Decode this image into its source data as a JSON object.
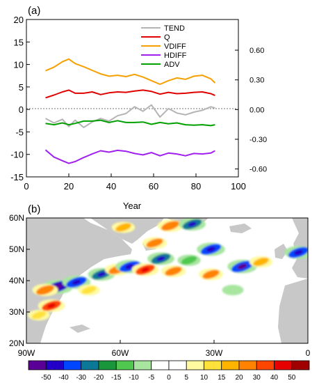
{
  "chart_data": [
    {
      "panel_label": "(a)",
      "type": "line",
      "xlabel": "Year",
      "xlim": [
        0,
        100
      ],
      "ylim": [
        -15,
        20
      ],
      "y2lim": [
        -0.68,
        0.91
      ],
      "x_ticks": [
        0,
        20,
        40,
        60,
        80,
        100
      ],
      "y_ticks": [
        -15,
        -10,
        -5,
        0,
        5,
        10,
        15,
        20
      ],
      "y2_ticks": [
        "-0.60",
        "-0.30",
        "0.00",
        "0.30",
        "0.60"
      ],
      "y2_tick_values": [
        -0.6,
        -0.3,
        0.0,
        0.3,
        0.6
      ],
      "legend_position": "top-center",
      "x": [
        9,
        13,
        17,
        20,
        23,
        27,
        31,
        35,
        39,
        43,
        47,
        51,
        55,
        59,
        63,
        67,
        71,
        75,
        79,
        83,
        87,
        89
      ],
      "series": [
        {
          "name": "TEND",
          "color": "#b4b4b4",
          "values": [
            -2.0,
            -3.0,
            -2.2,
            -3.8,
            -2.4,
            -4.0,
            -2.8,
            -2.0,
            -2.6,
            -1.4,
            -0.9,
            0.6,
            -0.4,
            1.0,
            -1.7,
            0.2,
            -0.8,
            -1.2,
            -0.6,
            -0.2,
            0.6,
            0.3
          ]
        },
        {
          "name": "Q",
          "color": "#e00000",
          "values": [
            2.6,
            3.2,
            3.9,
            4.3,
            3.6,
            3.6,
            3.9,
            3.3,
            3.7,
            3.9,
            3.8,
            4.1,
            4.3,
            4.0,
            3.4,
            3.8,
            3.5,
            3.6,
            3.8,
            3.9,
            3.5,
            3.1
          ]
        },
        {
          "name": "VDIFF",
          "color": "#f5a000",
          "values": [
            8.6,
            9.4,
            10.6,
            11.2,
            10.2,
            9.5,
            8.7,
            7.9,
            7.4,
            7.6,
            7.3,
            7.8,
            7.2,
            6.4,
            5.6,
            6.4,
            7.0,
            6.7,
            7.4,
            7.6,
            6.8,
            5.9
          ]
        },
        {
          "name": "HDIFF",
          "color": "#a020f0",
          "values": [
            -9.0,
            -10.6,
            -11.4,
            -12.0,
            -11.6,
            -10.7,
            -9.9,
            -9.2,
            -9.5,
            -9.1,
            -9.3,
            -9.8,
            -10.1,
            -9.6,
            -10.3,
            -9.7,
            -9.9,
            -10.3,
            -9.8,
            -9.9,
            -9.7,
            -9.2
          ]
        },
        {
          "name": "ADV",
          "color": "#00a000",
          "values": [
            -3.1,
            -3.4,
            -3.0,
            -3.4,
            -3.1,
            -2.6,
            -2.6,
            -2.4,
            -2.9,
            -2.5,
            -2.9,
            -2.9,
            -2.8,
            -3.3,
            -2.9,
            -3.2,
            -3.0,
            -3.4,
            -3.5,
            -3.4,
            -3.6,
            -3.4
          ]
        }
      ]
    },
    {
      "panel_label": "(b)",
      "type": "heatmap",
      "map_extent": {
        "lon": [
          -90,
          0
        ],
        "lat": [
          20,
          60
        ]
      },
      "x_tick_labels": [
        "90W",
        "60W",
        "30W",
        "0"
      ],
      "y_tick_labels": [
        "20N",
        "30N",
        "40N",
        "50N",
        "60N"
      ],
      "colorbar_levels": [
        -50,
        -40,
        -30,
        -20,
        -15,
        -10,
        -5,
        0,
        5,
        10,
        15,
        20,
        30,
        40,
        50
      ],
      "colorbar_colors": [
        "#5a0096",
        "#2300c8",
        "#0046ff",
        "#0a7896",
        "#19963c",
        "#50c850",
        "#a8e6a0",
        "#ffffff",
        "#ffffff",
        "#fffaa0",
        "#ffe13c",
        "#ffb400",
        "#ff8200",
        "#ff4600",
        "#e60000",
        "#a00000"
      ],
      "anomalies": [
        {
          "lon": -80,
          "lat": 38,
          "value": -45
        },
        {
          "lon": -84,
          "lat": 37,
          "value": 25
        },
        {
          "lon": -74,
          "lat": 39.5,
          "value": -35
        },
        {
          "lon": -66,
          "lat": 42,
          "value": -30
        },
        {
          "lon": -61,
          "lat": 43.5,
          "value": 20
        },
        {
          "lon": -57,
          "lat": 44.5,
          "value": -35
        },
        {
          "lon": -52,
          "lat": 43.5,
          "value": 30
        },
        {
          "lon": -47,
          "lat": 47,
          "value": -30
        },
        {
          "lon": -43,
          "lat": 43,
          "value": 20
        },
        {
          "lon": -38,
          "lat": 46.5,
          "value": -15
        },
        {
          "lon": -31,
          "lat": 50,
          "value": -35
        },
        {
          "lon": -21,
          "lat": 44.5,
          "value": -40
        },
        {
          "lon": -31,
          "lat": 42,
          "value": 20
        },
        {
          "lon": -15,
          "lat": 46,
          "value": 15
        },
        {
          "lon": -49,
          "lat": 52,
          "value": 20
        },
        {
          "lon": -44,
          "lat": 57.5,
          "value": 25
        },
        {
          "lon": -37,
          "lat": 58,
          "value": -30
        },
        {
          "lon": -59,
          "lat": 57,
          "value": 15
        },
        {
          "lon": -3,
          "lat": 49,
          "value": -35
        },
        {
          "lon": -82,
          "lat": 32,
          "value": 30
        },
        {
          "lon": -86,
          "lat": 29,
          "value": 10
        },
        {
          "lon": -70,
          "lat": 37,
          "value": 10
        },
        {
          "lon": -24,
          "lat": 37,
          "value": -8
        }
      ]
    }
  ]
}
